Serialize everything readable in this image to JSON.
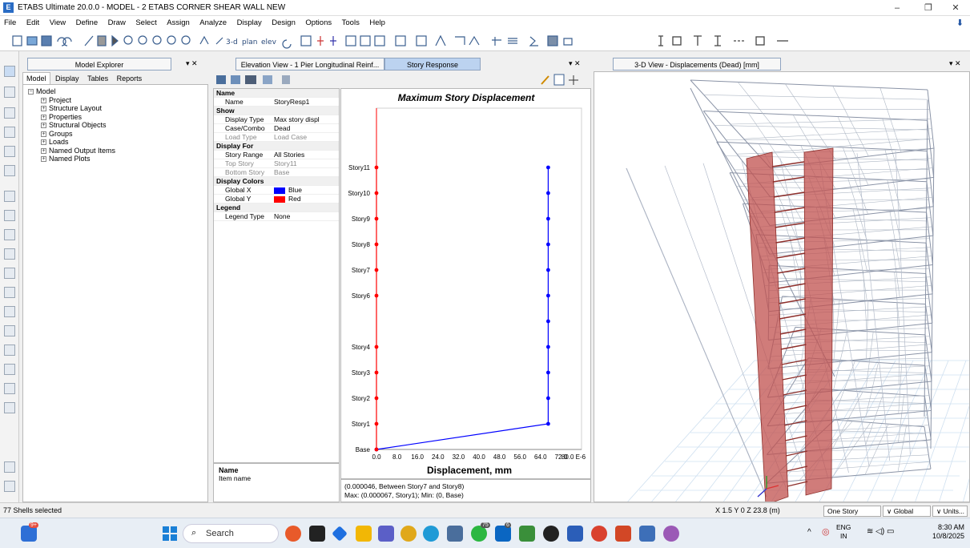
{
  "window": {
    "title": "ETABS Ultimate 20.0.0 - MODEL - 2 ETABS CORNER SHEAR WALL NEW",
    "app_icon": "E",
    "controls": [
      "–",
      "❐",
      "✕"
    ]
  },
  "menu": [
    "File",
    "Edit",
    "View",
    "Define",
    "Draw",
    "Select",
    "Assign",
    "Analyze",
    "Display",
    "Design",
    "Options",
    "Tools",
    "Help"
  ],
  "explorer": {
    "header": "Model Explorer",
    "tabs": [
      "Model",
      "Display",
      "Tables",
      "Reports"
    ],
    "root": "Model",
    "items": [
      "Project",
      "Structure Layout",
      "Properties",
      "Structural Objects",
      "Groups",
      "Loads",
      "Named Output Items",
      "Named Plots"
    ]
  },
  "center_tabs": [
    "Elevation View - 1  Pier Longitudinal Reinf...",
    "Story Response"
  ],
  "properties": {
    "sections": [
      {
        "title": "Name",
        "rows": [
          {
            "k": "Name",
            "v": "StoryResp1",
            "gray": false
          }
        ]
      },
      {
        "title": "Show",
        "rows": [
          {
            "k": "Display Type",
            "v": "Max story displ",
            "gray": false
          },
          {
            "k": "Case/Combo",
            "v": "Dead",
            "gray": false
          },
          {
            "k": "Load Type",
            "v": "Load Case",
            "gray": true
          }
        ]
      },
      {
        "title": "Display For",
        "rows": [
          {
            "k": "Story Range",
            "v": "All Stories",
            "gray": false
          },
          {
            "k": "Top Story",
            "v": "Story11",
            "gray": true
          },
          {
            "k": "Bottom Story",
            "v": "Base",
            "gray": true
          }
        ]
      },
      {
        "title": "Display Colors",
        "rows": [
          {
            "k": "Global X",
            "v": "Blue",
            "gray": false,
            "swatch": "#0000ff"
          },
          {
            "k": "Global Y",
            "v": "Red",
            "gray": false,
            "swatch": "#ff0000"
          }
        ]
      },
      {
        "title": "Legend",
        "rows": [
          {
            "k": "Legend Type",
            "v": "None",
            "gray": false
          }
        ]
      }
    ],
    "help_title": "Name",
    "help_text": "Item name"
  },
  "chart_info": {
    "line1": "(0.000046, Between Story7 and Story8)",
    "line2": "Max: (0.000067, Story1);  Min: (0, Base)"
  },
  "chart_data": {
    "type": "line",
    "title": "Maximum Story Displacement",
    "xlabel": "Displacement, mm",
    "x_ticks": [
      "0.0",
      "8.0",
      "16.0",
      "24.0",
      "32.0",
      "40.0",
      "48.0",
      "56.0",
      "64.0",
      "72.0",
      "80.0 E-6"
    ],
    "xlim": [
      0,
      8e-05
    ],
    "stories": [
      "Base",
      "Story1",
      "Story2",
      "Story3",
      "Story4",
      "Story6",
      "Story7",
      "Story8",
      "Story9",
      "Story10",
      "Story11"
    ],
    "story_levels": [
      0,
      1,
      2,
      3,
      4,
      6,
      7,
      8,
      9,
      10,
      11
    ],
    "series": [
      {
        "name": "Global X",
        "color": "#0000ff",
        "points": [
          [
            0,
            0
          ],
          [
            6.7e-05,
            1
          ],
          [
            6.7e-05,
            2
          ],
          [
            6.7e-05,
            3
          ],
          [
            6.7e-05,
            4
          ],
          [
            6.7e-05,
            5
          ],
          [
            6.7e-05,
            6
          ],
          [
            6.7e-05,
            7
          ],
          [
            6.7e-05,
            8
          ],
          [
            6.7e-05,
            9
          ],
          [
            6.7e-05,
            10
          ],
          [
            6.7e-05,
            11
          ]
        ]
      },
      {
        "name": "Global Y",
        "color": "#ff0000",
        "points": [
          [
            0,
            0
          ],
          [
            0,
            1
          ],
          [
            0,
            2
          ],
          [
            0,
            3
          ],
          [
            0,
            4
          ],
          [
            0,
            6
          ],
          [
            0,
            7
          ],
          [
            0,
            8
          ],
          [
            0,
            9
          ],
          [
            0,
            10
          ],
          [
            0,
            11
          ]
        ]
      }
    ]
  },
  "view3d": {
    "tab": "3-D View  - Displacements (Dead)  [mm]"
  },
  "status": {
    "left": "77 Shells selected",
    "coords": "X 1.5  Y 0  Z 23.8 (m)",
    "story_mode": "One Story",
    "coord_sys": "Global",
    "units": "Units..."
  },
  "taskbar": {
    "search": "Search",
    "lang_top": "ENG",
    "lang_bottom": "IN",
    "time": "8:30 AM",
    "date": "10/8/2025",
    "badge_weather": "9+",
    "badge_whatsapp": "75",
    "badge_linkedin": "6"
  },
  "colors": {
    "accent": "#2a6cc4",
    "wall": "#c0504d",
    "grid": "#aeb7c4"
  }
}
